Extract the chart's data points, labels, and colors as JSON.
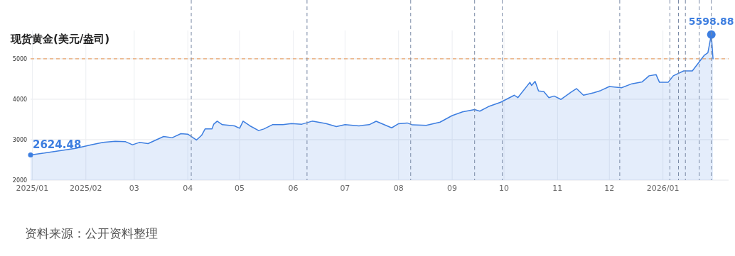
{
  "chart_data": {
    "type": "area",
    "title": "现货黄金(美元/盎司)",
    "annotations": [
      "资料来源：公开资料整理"
    ],
    "x": [
      "2024-12-31",
      "2025-01-08",
      "2025-01-17",
      "2025-01-26",
      "2025-02-04",
      "2025-02-11",
      "2025-02-18",
      "2025-02-24",
      "2025-02-28",
      "2025-03-04",
      "2025-03-09",
      "2025-03-18",
      "2025-03-23",
      "2025-03-28",
      "2025-04-01",
      "2025-04-06",
      "2025-04-09",
      "2025-04-11",
      "2025-04-15",
      "2025-04-16",
      "2025-04-18",
      "2025-04-21",
      "2025-04-28",
      "2025-05-01",
      "2025-05-03",
      "2025-05-07",
      "2025-05-12",
      "2025-05-15",
      "2025-05-20",
      "2025-05-26",
      "2025-05-31",
      "2025-06-06",
      "2025-06-12",
      "2025-06-20",
      "2025-06-26",
      "2025-07-01",
      "2025-07-09",
      "2025-07-15",
      "2025-07-19",
      "2025-07-28",
      "2025-08-01",
      "2025-08-06",
      "2025-08-09",
      "2025-08-17",
      "2025-08-25",
      "2025-09-01",
      "2025-09-07",
      "2025-09-14",
      "2025-09-17",
      "2025-09-22",
      "2025-09-29",
      "2025-10-07",
      "2025-10-09",
      "2025-10-16",
      "2025-10-17",
      "2025-10-19",
      "2025-10-21",
      "2025-10-24",
      "2025-10-27",
      "2025-10-30",
      "2025-11-03",
      "2025-11-09",
      "2025-11-12",
      "2025-11-16",
      "2025-11-22",
      "2025-11-26",
      "2025-12-01",
      "2025-12-08",
      "2025-12-14",
      "2025-12-20",
      "2025-12-24",
      "2025-12-28",
      "2025-12-30",
      "2026-01-04",
      "2026-01-07",
      "2026-01-13",
      "2026-01-18",
      "2026-01-25",
      "2026-01-27",
      "2026-01-29",
      "2026-01-30"
    ],
    "series": [
      {
        "color": "#3d7ee0",
        "values": [
          2624.48,
          2669,
          2728,
          2786,
          2874,
          2932,
          2960,
          2950,
          2874,
          2932,
          2904,
          3079,
          3050,
          3149,
          3137,
          2991,
          3108,
          3265,
          3265,
          3383,
          3458,
          3371,
          3342,
          3283,
          3458,
          3342,
          3225,
          3265,
          3371,
          3371,
          3400,
          3383,
          3458,
          3400,
          3324,
          3371,
          3342,
          3371,
          3455,
          3293,
          3395,
          3413,
          3366,
          3354,
          3434,
          3596,
          3687,
          3746,
          3705,
          3818,
          3925,
          4100,
          4040,
          4418,
          4340,
          4442,
          4204,
          4190,
          4040,
          4080,
          3995,
          4180,
          4263,
          4100,
          4160,
          4215,
          4314,
          4285,
          4382,
          4430,
          4580,
          4610,
          4418,
          4418,
          4580,
          4700,
          4700,
          5090,
          5150,
          5598.88,
          4990
        ],
        "value_labels": [
          "2624.48",
          null,
          null,
          null,
          null,
          null,
          null,
          null,
          null,
          null,
          null,
          null,
          null,
          null,
          null,
          null,
          null,
          null,
          null,
          null,
          null,
          null,
          null,
          null,
          null,
          null,
          null,
          null,
          null,
          null,
          null,
          null,
          null,
          null,
          null,
          null,
          null,
          null,
          null,
          null,
          null,
          null,
          null,
          null,
          null,
          null,
          null,
          null,
          null,
          null,
          null,
          null,
          null,
          null,
          null,
          null,
          null,
          null,
          null,
          null,
          null,
          null,
          null,
          null,
          null,
          null,
          null,
          null,
          null,
          null,
          null,
          null,
          null,
          null,
          null,
          null,
          null,
          null,
          null,
          "5598.88",
          null
        ]
      }
    ],
    "xlim": [
      "2024-12-31",
      "2026-02-08"
    ],
    "xticks": [
      {
        "value": "2025-01-01",
        "label": "2025/01"
      },
      {
        "value": "2025-02-01",
        "label": "2025/02"
      },
      {
        "value": "2025-03-01",
        "label": "03"
      },
      {
        "value": "2025-04-01",
        "label": "04"
      },
      {
        "value": "2025-05-01",
        "label": "05"
      },
      {
        "value": "2025-06-01",
        "label": "06"
      },
      {
        "value": "2025-07-01",
        "label": "07"
      },
      {
        "value": "2025-08-01",
        "label": "08"
      },
      {
        "value": "2025-09-01",
        "label": "09"
      },
      {
        "value": "2025-10-01",
        "label": "10"
      },
      {
        "value": "2025-11-01",
        "label": "11"
      },
      {
        "value": "2025-12-01",
        "label": "12"
      },
      {
        "value": "2026-01-01",
        "label": "2026/01"
      }
    ],
    "ylim": [
      2000,
      5700
    ],
    "yticks": [
      2000,
      3000,
      4000,
      5000
    ],
    "grid": true,
    "ref_lines": [
      {
        "axis": "y",
        "value": 5000,
        "color": "#e8914a",
        "line_style": "dashed"
      },
      {
        "axis": "x",
        "value": "2025-04-03",
        "color": "#7a8aa6",
        "line_style": "dashed"
      },
      {
        "axis": "x",
        "value": "2025-06-09",
        "color": "#7a8aa6",
        "line_style": "dashed"
      },
      {
        "axis": "x",
        "value": "2025-08-08",
        "color": "#7a8aa6",
        "line_style": "dashed"
      },
      {
        "axis": "x",
        "value": "2025-09-14",
        "color": "#7a8aa6",
        "line_style": "dashed"
      },
      {
        "axis": "x",
        "value": "2025-09-30",
        "color": "#7a8aa6",
        "line_style": "dashed"
      },
      {
        "axis": "x",
        "value": "2025-12-07",
        "color": "#7a8aa6",
        "line_style": "dashed"
      },
      {
        "axis": "x",
        "value": "2026-01-05",
        "color": "#7a8aa6",
        "line_style": "dashed"
      },
      {
        "axis": "x",
        "value": "2026-01-10",
        "color": "#7a8aa6",
        "line_style": "dashed"
      },
      {
        "axis": "x",
        "value": "2026-01-14",
        "color": "#7a8aa6",
        "line_style": "dashed"
      },
      {
        "axis": "x",
        "value": "2026-01-22",
        "color": "#7a8aa6",
        "line_style": "dashed"
      },
      {
        "axis": "x",
        "value": "2026-01-29",
        "color": "#7a8aa6",
        "line_style": "dashed"
      }
    ]
  }
}
